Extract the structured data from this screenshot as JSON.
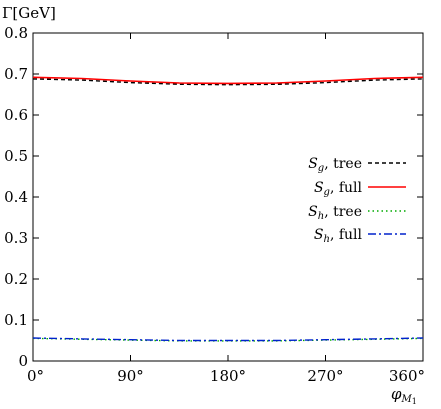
{
  "chart_data": {
    "type": "line",
    "ylabel": "Γ[GeV]",
    "xlabel": "φ_{M₁}",
    "xlabel_main": "φ",
    "xlabel_sub": "M",
    "xlabel_subsub": "1",
    "xlim": [
      0,
      360
    ],
    "ylim": [
      0,
      0.8
    ],
    "x_ticks": [
      0,
      90,
      180,
      270,
      360
    ],
    "x_tick_labels": [
      "0°",
      "90°",
      "180°",
      "270°",
      "360°"
    ],
    "y_ticks": [
      0,
      0.1,
      0.2,
      0.3,
      0.4,
      0.5,
      0.6,
      0.7,
      0.8
    ],
    "y_tick_labels": [
      "0",
      "0.1",
      "0.2",
      "0.3",
      "0.4",
      "0.5",
      "0.6",
      "0.7",
      "0.8"
    ],
    "grid": false,
    "legend_position": "right",
    "x": [
      0,
      45,
      90,
      135,
      180,
      225,
      270,
      315,
      360
    ],
    "series": [
      {
        "name": "S_g, tree",
        "label_main": "S",
        "label_sub": "g",
        "label_rest": ", tree",
        "color": "#000000",
        "dash": "4,3",
        "values": [
          0.688,
          0.685,
          0.679,
          0.675,
          0.674,
          0.675,
          0.679,
          0.685,
          0.688
        ]
      },
      {
        "name": "S_g, full",
        "label_main": "S",
        "label_sub": "g",
        "label_rest": ", full",
        "color": "#ff0000",
        "dash": "",
        "values": [
          0.692,
          0.689,
          0.683,
          0.678,
          0.677,
          0.678,
          0.683,
          0.689,
          0.692
        ]
      },
      {
        "name": "S_h, tree",
        "label_main": "S",
        "label_sub": "h",
        "label_rest": ", tree",
        "color": "#00aa00",
        "dash": "1.5,3",
        "values": [
          0.055,
          0.053,
          0.051,
          0.049,
          0.049,
          0.049,
          0.051,
          0.053,
          0.055
        ]
      },
      {
        "name": "S_h, full",
        "label_main": "S",
        "label_sub": "h",
        "label_rest": ", full",
        "color": "#0022cc",
        "dash": "8,3,2,3",
        "values": [
          0.056,
          0.054,
          0.052,
          0.05,
          0.05,
          0.05,
          0.052,
          0.054,
          0.056
        ]
      }
    ]
  }
}
